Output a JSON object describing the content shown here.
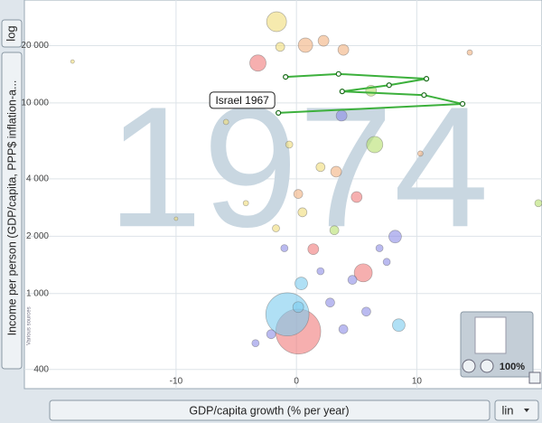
{
  "chart_data": {
    "type": "bubble",
    "year": "1974",
    "y_label": "Income per person (GDP/capita, PPP$ inflation-a...",
    "x_label": "GDP/capita growth (% per year)",
    "y_scale_button": "log",
    "x_scale_button": "lin",
    "zoom_label": "100%",
    "source": "Various sources",
    "log_y": true,
    "grid": true,
    "xlim": [
      -22.6,
      20.4
    ],
    "ylim": [
      317,
      34700
    ],
    "xticks": [
      -10,
      0,
      10
    ],
    "yticks": [
      {
        "value": 20000,
        "label": "20 000"
      },
      {
        "value": 10000,
        "label": "10 000"
      },
      {
        "value": 4000,
        "label": "4 000"
      },
      {
        "value": 2000,
        "label": "2 000"
      },
      {
        "value": 1000,
        "label": "1 000"
      },
      400
    ],
    "x": [
      0.15,
      -0.75,
      -1.65,
      6.5,
      5.55,
      -3.2,
      0.75,
      8.5,
      8.2,
      0.4,
      2.25,
      3.9,
      3.75,
      5.0,
      3.3,
      6.2,
      1.4,
      0.15,
      -1.35,
      0.15,
      0.5,
      3.15,
      4.65,
      2.0,
      3.9,
      2.8,
      5.8,
      -2.1,
      -3.4,
      -1.0,
      2.0,
      -1.7,
      6.9,
      -0.6,
      7.5,
      10.3,
      -4.2,
      -5.85,
      14.4,
      -10,
      -18.6,
      20.1
    ],
    "values": [
      632,
      778,
      26700,
      6050,
      1285,
      16200,
      20100,
      683,
      1990,
      1130,
      21200,
      19000,
      8580,
      3210,
      4360,
      11600,
      1710,
      849,
      19700,
      3330,
      2670,
      2150,
      1180,
      1310,
      650,
      897,
      804,
      612,
      549,
      1730,
      4610,
      2200,
      1730,
      6050,
      1466,
      5430,
      2980,
      7950,
      18400,
      2470,
      16500,
      2980
    ],
    "sizes": [
      900,
      830,
      176,
      118,
      145,
      118,
      93,
      71,
      71,
      71,
      52,
      52,
      52,
      52,
      52,
      52,
      52,
      52,
      36,
      36,
      36,
      36,
      36,
      23,
      36,
      36,
      36,
      36,
      23,
      23,
      36,
      23,
      23,
      23,
      23,
      13,
      13,
      13,
      13,
      6,
      6,
      23
    ],
    "colors": [
      "#f07a7a",
      "#7ccbee",
      "#f0dc78",
      "#b6e06c",
      "#f07a7a",
      "#f07a7a",
      "#f2b07e",
      "#7ccbee",
      "#8c8ce6",
      "#7ccbee",
      "#f2b07e",
      "#f2b07e",
      "#8c8ce6",
      "#f07a7a",
      "#f2b07e",
      "#b6e06c",
      "#f07a7a",
      "#7ccbee",
      "#f0dc78",
      "#f2b07e",
      "#f0dc78",
      "#b6e06c",
      "#8c8ce6",
      "#8c8ce6",
      "#8c8ce6",
      "#8c8ce6",
      "#8c8ce6",
      "#8c8ce6",
      "#8c8ce6",
      "#8c8ce6",
      "#f0dc78",
      "#f0dc78",
      "#8c8ce6",
      "#f0dc78",
      "#8c8ce6",
      "#f2b07e",
      "#f0dc78",
      "#f0dc78",
      "#f2b07e",
      "#f0dc78",
      "#f0dc78",
      "#b6e06c"
    ],
    "trail": {
      "x": [
        -1.5,
        13.8,
        10.6,
        3.8,
        7.7,
        10.8,
        3.5,
        -0.9
      ],
      "values": [
        8870,
        9890,
        11000,
        11500,
        12400,
        13400,
        14200,
        13700
      ],
      "color": "#3cb03c"
    },
    "annotation": "Israel 1967"
  }
}
